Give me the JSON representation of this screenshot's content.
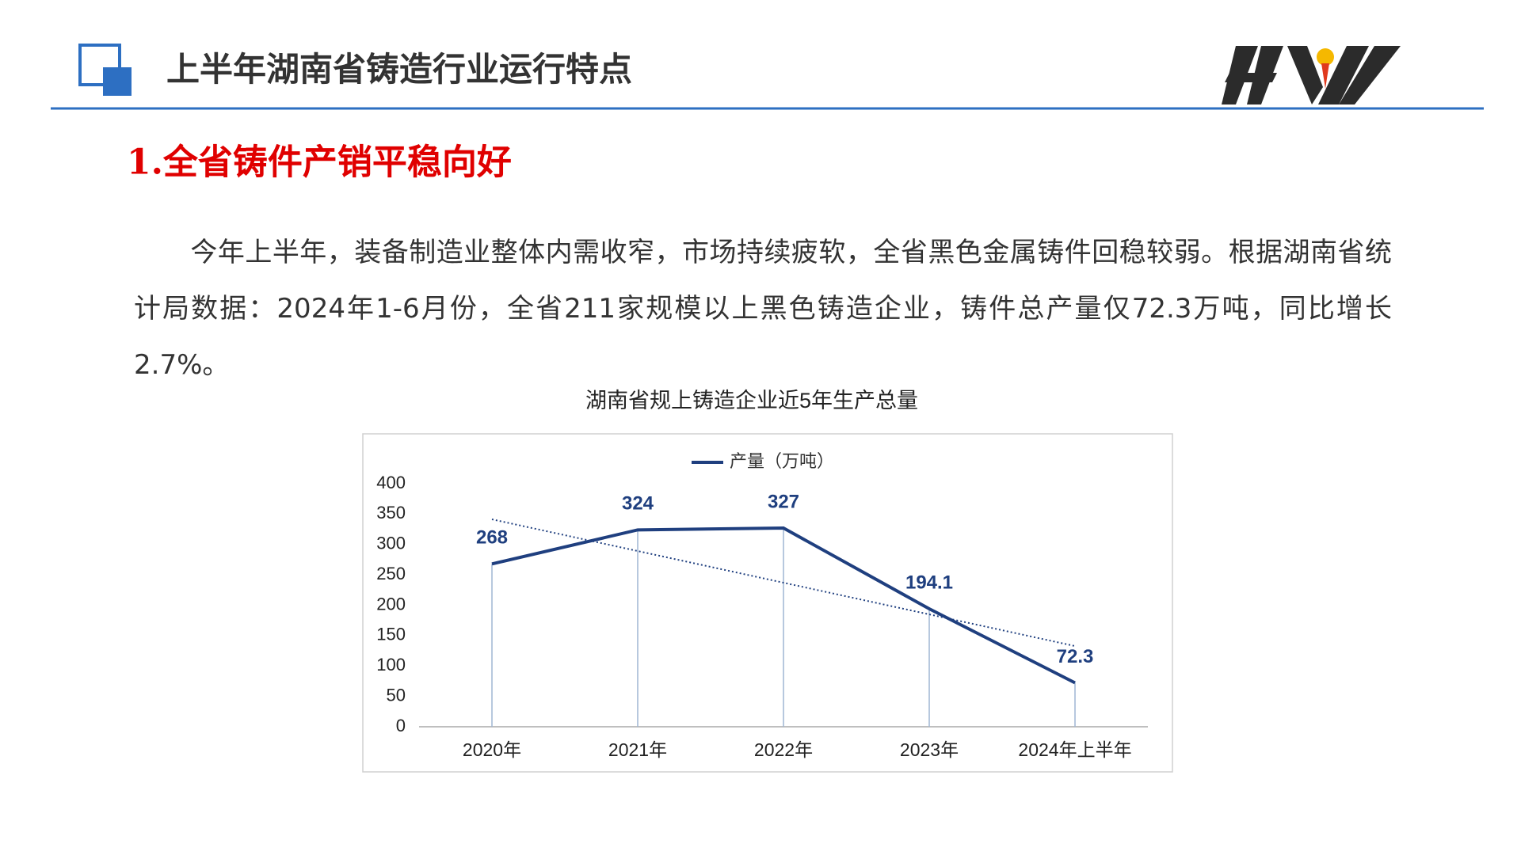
{
  "header": {
    "title": "上半年湖南省铸造行业运行特点"
  },
  "section": {
    "title": "1.全省铸件产销平稳向好"
  },
  "paragraph": "今年上半年，装备制造业整体内需收窄，市场持续疲软，全省黑色金属铸件回稳较弱。根据湖南省统计局数据：2024年1-6月份，全省211家规模以上黑色铸造企业，铸件总产量仅72.3万吨，同比增长2.7%。",
  "chart_data": {
    "type": "line",
    "title": "湖南省规上铸造企业近5年生产总量",
    "categories": [
      "2020年",
      "2021年",
      "2022年",
      "2023年",
      "2024年上半年"
    ],
    "series": [
      {
        "name": "产量（万吨）",
        "color": "#1f3f7f",
        "values": [
          268,
          324,
          327,
          194.1,
          72.3
        ]
      }
    ],
    "ylim": [
      0,
      400
    ],
    "yticks": [
      0,
      50,
      100,
      150,
      200,
      250,
      300,
      350,
      400
    ],
    "trendline": true,
    "legend": "top"
  }
}
